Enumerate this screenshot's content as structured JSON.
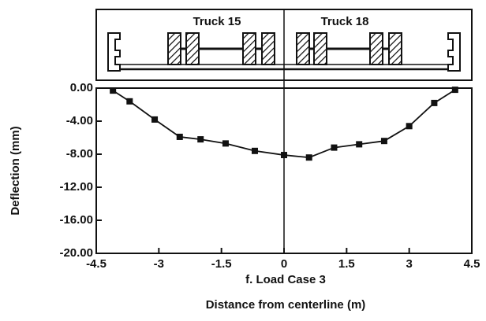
{
  "chart_data": {
    "type": "line",
    "title": "f.  Load Case 3",
    "xlabel": "Distance from centerline (m)",
    "ylabel": "Deflection (mm)",
    "annotations": [
      "Truck 15",
      "Truck 18"
    ],
    "x": [
      -4.1,
      -3.7,
      -3.1,
      -2.5,
      -2.0,
      -1.4,
      -0.7,
      0,
      0.6,
      1.2,
      1.8,
      2.4,
      3.0,
      3.6,
      4.1
    ],
    "series": [
      {
        "name": "Deflection",
        "color": "#111111",
        "values": [
          -0.3,
          -1.6,
          -3.8,
          -5.9,
          -6.2,
          -6.7,
          -7.6,
          -8.1,
          -8.4,
          -7.2,
          -6.8,
          -6.4,
          -4.6,
          -1.8,
          -0.2
        ]
      }
    ],
    "xlim": [
      -4.5,
      4.5
    ],
    "xticks": [
      -4.5,
      -3,
      -1.5,
      0,
      1.5,
      3,
      4.5
    ],
    "ylim": [
      -20,
      0
    ],
    "yticks": [
      {
        "value": 0,
        "label": "0.00"
      },
      {
        "value": -4,
        "label": "-4.00"
      },
      {
        "value": -8,
        "label": "-8.00"
      },
      {
        "value": -12,
        "label": "-12.00"
      },
      {
        "value": -16,
        "label": "-16.00"
      },
      {
        "value": -20,
        "label": "-20.00"
      }
    ]
  }
}
